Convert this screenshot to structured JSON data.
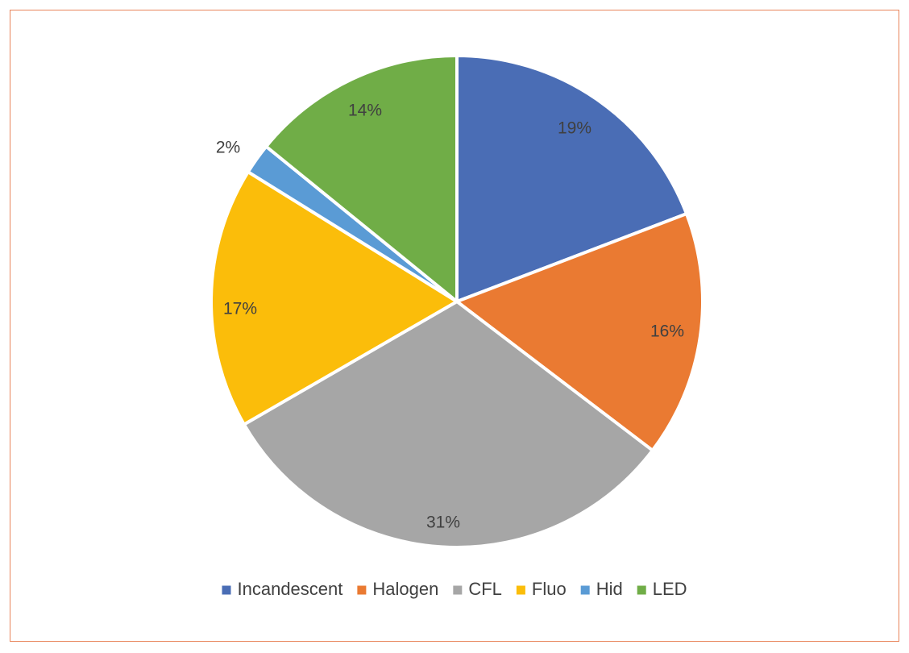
{
  "chart_data": {
    "type": "pie",
    "title": "",
    "slices": [
      {
        "label": "Incandescent",
        "value": 19,
        "display": "19%",
        "color": "#4a6db5"
      },
      {
        "label": "Halogen",
        "value": 16,
        "display": "16%",
        "color": "#ea7a32"
      },
      {
        "label": "CFL",
        "value": 31,
        "display": "31%",
        "color": "#a6a6a6"
      },
      {
        "label": "Fluo",
        "value": 17,
        "display": "17%",
        "color": "#fbbd0a"
      },
      {
        "label": "Hid",
        "value": 2,
        "display": "2%",
        "color": "#5a9bd5"
      },
      {
        "label": "LED",
        "value": 14,
        "display": "14%",
        "color": "#70ad47"
      }
    ],
    "legend_position": "bottom",
    "frame_color": "#e8845a"
  }
}
